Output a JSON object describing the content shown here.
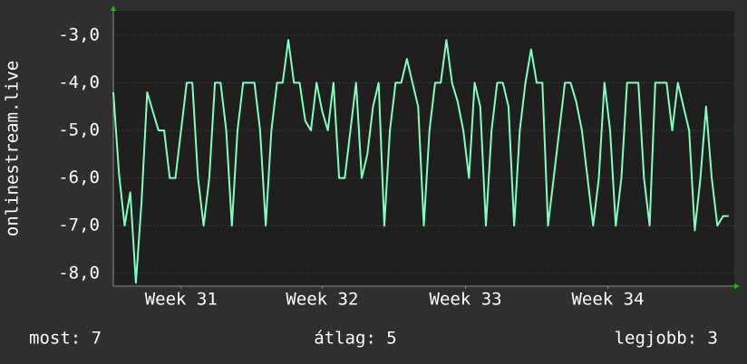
{
  "chart_data": {
    "type": "line",
    "ylabel": "onlinestream.live",
    "color": "#80ffc0",
    "grid": true,
    "xlim": [
      0,
      27.5
    ],
    "ylim": [
      -8.27,
      -2.49
    ],
    "yticks": [
      {
        "value": -3,
        "label": "-3,0"
      },
      {
        "value": -4,
        "label": "-4,0"
      },
      {
        "value": -5,
        "label": "-5,0"
      },
      {
        "value": -6,
        "label": "-6,0"
      },
      {
        "value": -7,
        "label": "-7,0"
      },
      {
        "value": -8,
        "label": "-8,0"
      }
    ],
    "xticks": [
      {
        "value": 3.0,
        "label": "Week 31"
      },
      {
        "value": 9.25,
        "label": "Week 32"
      },
      {
        "value": 15.6,
        "label": "Week 33"
      },
      {
        "value": 21.9,
        "label": "Week 34"
      }
    ],
    "x": [
      0,
      0.25,
      0.5,
      0.75,
      1,
      1.25,
      1.5,
      1.75,
      2,
      2.25,
      2.5,
      2.75,
      3,
      3.25,
      3.5,
      3.75,
      4,
      4.25,
      4.5,
      4.75,
      5,
      5.25,
      5.5,
      5.75,
      6,
      6.25,
      6.5,
      6.75,
      7,
      7.25,
      7.5,
      7.75,
      8,
      8.25,
      8.5,
      8.75,
      9,
      9.25,
      9.5,
      9.75,
      10,
      10.25,
      10.5,
      10.75,
      11,
      11.25,
      11.5,
      11.75,
      12,
      12.25,
      12.5,
      12.75,
      13,
      13.25,
      13.5,
      13.75,
      14,
      14.25,
      14.5,
      14.75,
      15,
      15.25,
      15.5,
      15.75,
      16,
      16.25,
      16.5,
      16.75,
      17,
      17.25,
      17.5,
      17.75,
      18,
      18.25,
      18.5,
      18.75,
      19,
      19.25,
      19.5,
      19.75,
      20,
      20.25,
      20.5,
      20.75,
      21,
      21.25,
      21.5,
      21.75,
      22,
      22.25,
      22.5,
      22.75,
      23,
      23.25,
      23.5,
      23.75,
      24,
      24.25,
      24.5,
      24.75,
      25,
      25.25,
      25.5,
      25.75,
      26,
      26.25,
      26.5,
      26.75,
      27,
      27.25
    ],
    "values": [
      -4.2,
      -5.9,
      -7,
      -6.3,
      -8.2,
      -6.5,
      -4.2,
      -4.6,
      -5,
      -5,
      -6,
      -6,
      -5,
      -4,
      -4,
      -6,
      -7,
      -6,
      -4,
      -4,
      -5,
      -7,
      -5,
      -4,
      -4,
      -4,
      -5,
      -7,
      -5,
      -4,
      -4,
      -3.1,
      -4,
      -4,
      -4.8,
      -5,
      -4,
      -4.6,
      -5,
      -4,
      -6,
      -6,
      -5,
      -4,
      -6,
      -5.5,
      -4.5,
      -4,
      -7,
      -5,
      -4,
      -4,
      -3.5,
      -4,
      -4.5,
      -7,
      -5,
      -4,
      -4,
      -3.1,
      -4,
      -4.4,
      -5,
      -6,
      -4,
      -4.5,
      -7,
      -5,
      -4,
      -4,
      -4.5,
      -7,
      -5,
      -4,
      -3.3,
      -4,
      -4,
      -7,
      -6,
      -5,
      -4,
      -4,
      -4.4,
      -5,
      -6,
      -7,
      -6,
      -4,
      -5,
      -7,
      -6,
      -4,
      -4,
      -4,
      -6,
      -7,
      -4,
      -4,
      -4,
      -5,
      -4,
      -4.5,
      -5,
      -7.1,
      -6,
      -4.5,
      -6,
      -7,
      -6.8,
      -6.8
    ],
    "annotations": [
      "most: 7",
      "átlag: 5",
      "legjobb: 3"
    ]
  }
}
